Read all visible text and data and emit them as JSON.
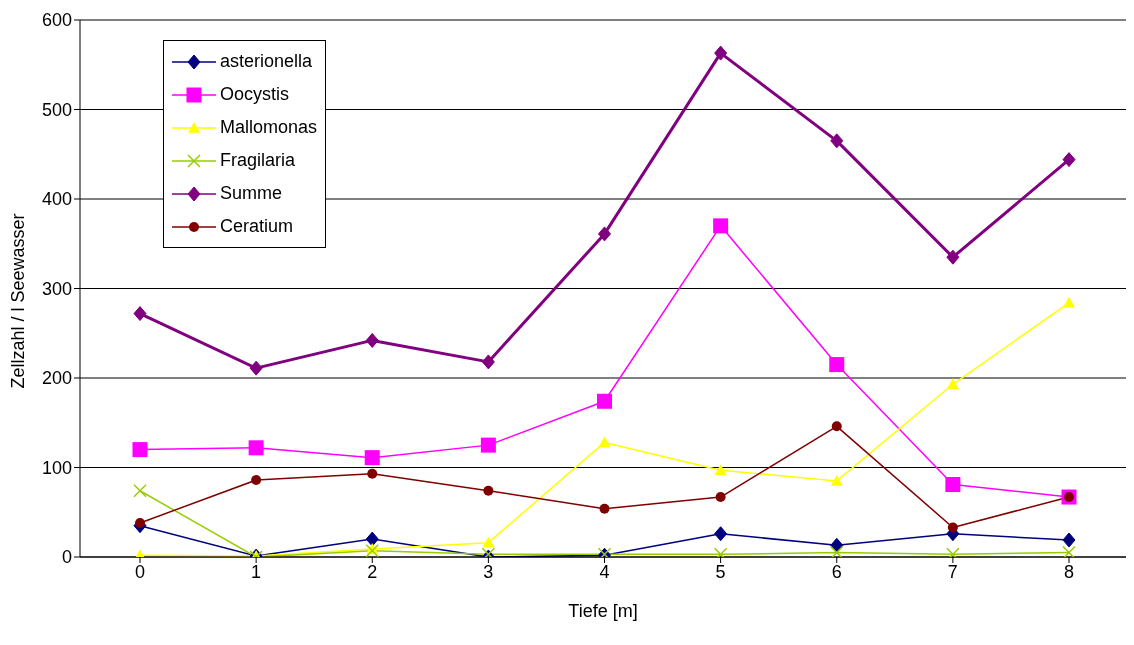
{
  "chart_data": {
    "type": "line",
    "xlabel": "Tiefe [m]",
    "ylabel": "Zellzahl / l Seewasser",
    "categories": [
      "0",
      "1",
      "2",
      "3",
      "4",
      "5",
      "6",
      "7",
      "8"
    ],
    "series": [
      {
        "name": "asterionella",
        "color": "#000080",
        "marker": "diamond",
        "values": [
          35,
          1,
          20,
          0,
          2,
          26,
          13,
          26,
          19
        ]
      },
      {
        "name": "Oocystis",
        "color": "#ff00ff",
        "marker": "square",
        "values": [
          120,
          122,
          111,
          125,
          174,
          370,
          215,
          81,
          67
        ]
      },
      {
        "name": "Mallomonas",
        "color": "#ffff00",
        "marker": "triangle",
        "values": [
          2,
          1,
          9,
          16,
          128,
          97,
          85,
          193,
          284
        ]
      },
      {
        "name": "Fragilaria",
        "color": "#99cc00",
        "marker": "cross",
        "values": [
          74,
          0,
          7,
          3,
          3,
          3,
          5,
          3,
          5
        ]
      },
      {
        "name": "Summe",
        "color": "#800080",
        "marker": "diamond",
        "values": [
          272,
          211,
          242,
          218,
          361,
          563,
          465,
          335,
          444
        ]
      },
      {
        "name": "Ceratium",
        "color": "#800000",
        "marker": "circle",
        "values": [
          38,
          86,
          93,
          74,
          54,
          67,
          146,
          33,
          67
        ]
      }
    ],
    "ylim": [
      0,
      600
    ],
    "yticks": [
      0,
      100,
      200,
      300,
      400,
      500,
      600
    ],
    "grid": "y",
    "legend": "top left",
    "line_style": "solid"
  }
}
